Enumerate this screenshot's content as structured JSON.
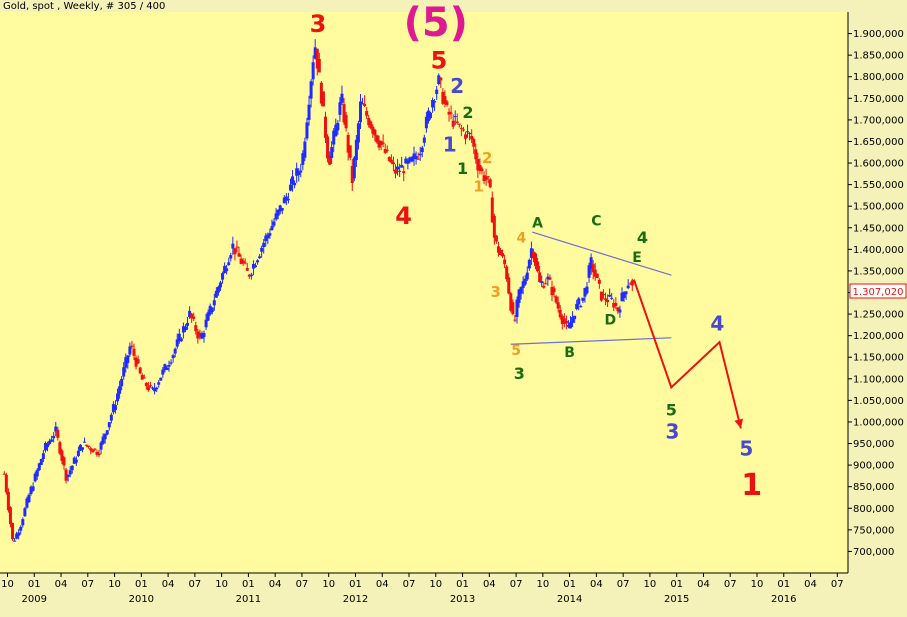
{
  "title": "Gold, spot , Weekly, # 305 / 400",
  "price_label": "1.307,020",
  "colors": {
    "background": "#fffb9e",
    "up": "#1e2cff",
    "down": "#ee1111",
    "trend": "#6f70d8",
    "projection": "#ee1111",
    "red": "#ee1111",
    "blue": "#4848d0",
    "green": "#1a6c12",
    "orange": "#f0a020",
    "magenta": "#dd1a90"
  },
  "chart_data": {
    "type": "candlestick",
    "y_range": [
      650000,
      1950000
    ],
    "y_ticks": [
      {
        "v": 700000,
        "label": "700,000"
      },
      {
        "v": 750000,
        "label": "750,000"
      },
      {
        "v": 800000,
        "label": "800,000"
      },
      {
        "v": 850000,
        "label": "850,000"
      },
      {
        "v": 900000,
        "label": "900,000"
      },
      {
        "v": 950000,
        "label": "950,000"
      },
      {
        "v": 1000000,
        "label": "1.000,000"
      },
      {
        "v": 1050000,
        "label": "1.050,000"
      },
      {
        "v": 1100000,
        "label": "1.100,000"
      },
      {
        "v": 1150000,
        "label": "1.150,000"
      },
      {
        "v": 1200000,
        "label": "1.200,000"
      },
      {
        "v": 1250000,
        "label": "1.250,000"
      },
      {
        "v": 1300000,
        "label": "1.300,000"
      },
      {
        "v": 1350000,
        "label": "1.350,000"
      },
      {
        "v": 1400000,
        "label": "1.400,000"
      },
      {
        "v": 1450000,
        "label": "1.450,000"
      },
      {
        "v": 1500000,
        "label": "1.500,000"
      },
      {
        "v": 1550000,
        "label": "1.550,000"
      },
      {
        "v": 1600000,
        "label": "1.600,000"
      },
      {
        "v": 1650000,
        "label": "1.650,000"
      },
      {
        "v": 1700000,
        "label": "1.700,000"
      },
      {
        "v": 1750000,
        "label": "1.750,000"
      },
      {
        "v": 1800000,
        "label": "1.800,000"
      },
      {
        "v": 1850000,
        "label": "1.850,000"
      },
      {
        "v": 1900000,
        "label": "1.900,000"
      }
    ],
    "x_ticks": [
      {
        "t": 2008.75,
        "label": "10"
      },
      {
        "t": 2009.0,
        "label": "01"
      },
      {
        "t": 2009.25,
        "label": "04"
      },
      {
        "t": 2009.5,
        "label": "07"
      },
      {
        "t": 2009.75,
        "label": "10"
      },
      {
        "t": 2010.0,
        "label": "01"
      },
      {
        "t": 2010.25,
        "label": "04"
      },
      {
        "t": 2010.5,
        "label": "07"
      },
      {
        "t": 2010.75,
        "label": "10"
      },
      {
        "t": 2011.0,
        "label": "01"
      },
      {
        "t": 2011.25,
        "label": "04"
      },
      {
        "t": 2011.5,
        "label": "07"
      },
      {
        "t": 2011.75,
        "label": "10"
      },
      {
        "t": 2012.0,
        "label": "01"
      },
      {
        "t": 2012.25,
        "label": "04"
      },
      {
        "t": 2012.5,
        "label": "07"
      },
      {
        "t": 2012.75,
        "label": "10"
      },
      {
        "t": 2013.0,
        "label": "01"
      },
      {
        "t": 2013.25,
        "label": "04"
      },
      {
        "t": 2013.5,
        "label": "07"
      },
      {
        "t": 2013.75,
        "label": "10"
      },
      {
        "t": 2014.0,
        "label": "01"
      },
      {
        "t": 2014.25,
        "label": "04"
      },
      {
        "t": 2014.5,
        "label": "07"
      },
      {
        "t": 2014.75,
        "label": "10"
      },
      {
        "t": 2015.0,
        "label": "01"
      },
      {
        "t": 2015.25,
        "label": "04"
      },
      {
        "t": 2015.5,
        "label": "07"
      },
      {
        "t": 2015.75,
        "label": "10"
      },
      {
        "t": 2016.0,
        "label": "01"
      },
      {
        "t": 2016.25,
        "label": "04"
      },
      {
        "t": 2016.5,
        "label": "07"
      }
    ],
    "year_labels": [
      {
        "t": 2009.0,
        "label": "2009"
      },
      {
        "t": 2010.0,
        "label": "2010"
      },
      {
        "t": 2011.0,
        "label": "2011"
      },
      {
        "t": 2012.0,
        "label": "2012"
      },
      {
        "t": 2013.0,
        "label": "2013"
      },
      {
        "t": 2014.0,
        "label": "2014"
      },
      {
        "t": 2015.0,
        "label": "2015"
      },
      {
        "t": 2016.0,
        "label": "2016"
      }
    ],
    "path": [
      [
        2008.72,
        880000
      ],
      [
        2008.8,
        720000
      ],
      [
        2008.87,
        760000
      ],
      [
        2008.95,
        830000
      ],
      [
        2009.1,
        940000
      ],
      [
        2009.2,
        980000
      ],
      [
        2009.3,
        870000
      ],
      [
        2009.45,
        950000
      ],
      [
        2009.6,
        930000
      ],
      [
        2009.75,
        1040000
      ],
      [
        2009.9,
        1180000
      ],
      [
        2010.0,
        1100000
      ],
      [
        2010.1,
        1070000
      ],
      [
        2010.3,
        1160000
      ],
      [
        2010.45,
        1250000
      ],
      [
        2010.55,
        1190000
      ],
      [
        2010.7,
        1300000
      ],
      [
        2010.85,
        1410000
      ],
      [
        2011.0,
        1340000
      ],
      [
        2011.15,
        1420000
      ],
      [
        2011.35,
        1520000
      ],
      [
        2011.5,
        1600000
      ],
      [
        2011.62,
        1880000
      ],
      [
        2011.68,
        1760000
      ],
      [
        2011.75,
        1600000
      ],
      [
        2011.87,
        1750000
      ],
      [
        2011.97,
        1560000
      ],
      [
        2012.05,
        1740000
      ],
      [
        2012.2,
        1660000
      ],
      [
        2012.37,
        1580000
      ],
      [
        2012.52,
        1600000
      ],
      [
        2012.6,
        1630000
      ],
      [
        2012.72,
        1750000
      ],
      [
        2012.78,
        1790000
      ],
      [
        2012.85,
        1720000
      ],
      [
        2012.97,
        1680000
      ],
      [
        2013.08,
        1660000
      ],
      [
        2013.15,
        1590000
      ],
      [
        2013.25,
        1550000
      ],
      [
        2013.3,
        1420000
      ],
      [
        2013.4,
        1360000
      ],
      [
        2013.48,
        1220000
      ],
      [
        2013.52,
        1290000
      ],
      [
        2013.58,
        1330000
      ],
      [
        2013.65,
        1410000
      ],
      [
        2013.72,
        1320000
      ],
      [
        2013.8,
        1330000
      ],
      [
        2013.9,
        1260000
      ],
      [
        2013.98,
        1210000
      ],
      [
        2014.05,
        1260000
      ],
      [
        2014.13,
        1290000
      ],
      [
        2014.2,
        1370000
      ],
      [
        2014.3,
        1290000
      ],
      [
        2014.4,
        1280000
      ],
      [
        2014.45,
        1260000
      ],
      [
        2014.52,
        1310000
      ],
      [
        2014.56,
        1330000
      ],
      [
        2014.6,
        1300000
      ]
    ],
    "trendlines": [
      {
        "from": [
          2013.65,
          1440000
        ],
        "to": [
          2014.95,
          1340000
        ]
      },
      {
        "from": [
          2013.45,
          1180000
        ],
        "to": [
          2014.95,
          1195000
        ]
      }
    ],
    "projection": [
      [
        2014.6,
        1330000
      ],
      [
        2014.95,
        1080000
      ],
      [
        2015.4,
        1185000
      ],
      [
        2015.6,
        985000
      ]
    ],
    "wave_labels": [
      {
        "text": "3",
        "t": 2011.65,
        "v": 1920000,
        "color": "red",
        "size": 24
      },
      {
        "text": "(5)",
        "t": 2012.75,
        "v": 1920000,
        "color": "magenta",
        "size": 40
      },
      {
        "text": "5",
        "t": 2012.78,
        "v": 1835000,
        "color": "red",
        "size": 24
      },
      {
        "text": "2",
        "t": 2012.95,
        "v": 1775000,
        "color": "blue",
        "size": 20
      },
      {
        "text": "2",
        "t": 2013.05,
        "v": 1715000,
        "color": "green",
        "size": 16
      },
      {
        "text": "1",
        "t": 2012.88,
        "v": 1640000,
        "color": "blue",
        "size": 20
      },
      {
        "text": "1",
        "t": 2013.0,
        "v": 1585000,
        "color": "green",
        "size": 16
      },
      {
        "text": "2",
        "t": 2013.23,
        "v": 1610000,
        "color": "orange",
        "size": 15
      },
      {
        "text": "1",
        "t": 2013.15,
        "v": 1545000,
        "color": "orange",
        "size": 15
      },
      {
        "text": "4",
        "t": 2012.45,
        "v": 1475000,
        "color": "red",
        "size": 24
      },
      {
        "text": "A",
        "t": 2013.7,
        "v": 1460000,
        "color": "green",
        "size": 14
      },
      {
        "text": "C",
        "t": 2014.25,
        "v": 1465000,
        "color": "green",
        "size": 14
      },
      {
        "text": "4",
        "t": 2014.68,
        "v": 1425000,
        "color": "green",
        "size": 16
      },
      {
        "text": "E",
        "t": 2014.63,
        "v": 1380000,
        "color": "green",
        "size": 14
      },
      {
        "text": "4",
        "t": 2013.55,
        "v": 1425000,
        "color": "orange",
        "size": 14
      },
      {
        "text": "3",
        "t": 2013.31,
        "v": 1300000,
        "color": "orange",
        "size": 15
      },
      {
        "text": "5",
        "t": 2013.5,
        "v": 1165000,
        "color": "orange",
        "size": 14
      },
      {
        "text": "3",
        "t": 2013.53,
        "v": 1110000,
        "color": "green",
        "size": 16
      },
      {
        "text": "B",
        "t": 2014.0,
        "v": 1160000,
        "color": "green",
        "size": 14
      },
      {
        "text": "D",
        "t": 2014.38,
        "v": 1235000,
        "color": "green",
        "size": 14
      },
      {
        "text": "4",
        "t": 2015.38,
        "v": 1225000,
        "color": "blue",
        "size": 20
      },
      {
        "text": "5",
        "t": 2014.95,
        "v": 1025000,
        "color": "green",
        "size": 16
      },
      {
        "text": "3",
        "t": 2014.96,
        "v": 975000,
        "color": "blue",
        "size": 20
      },
      {
        "text": "5",
        "t": 2015.65,
        "v": 935000,
        "color": "blue",
        "size": 20
      },
      {
        "text": "1",
        "t": 2015.7,
        "v": 850000,
        "color": "red",
        "size": 30
      }
    ]
  }
}
